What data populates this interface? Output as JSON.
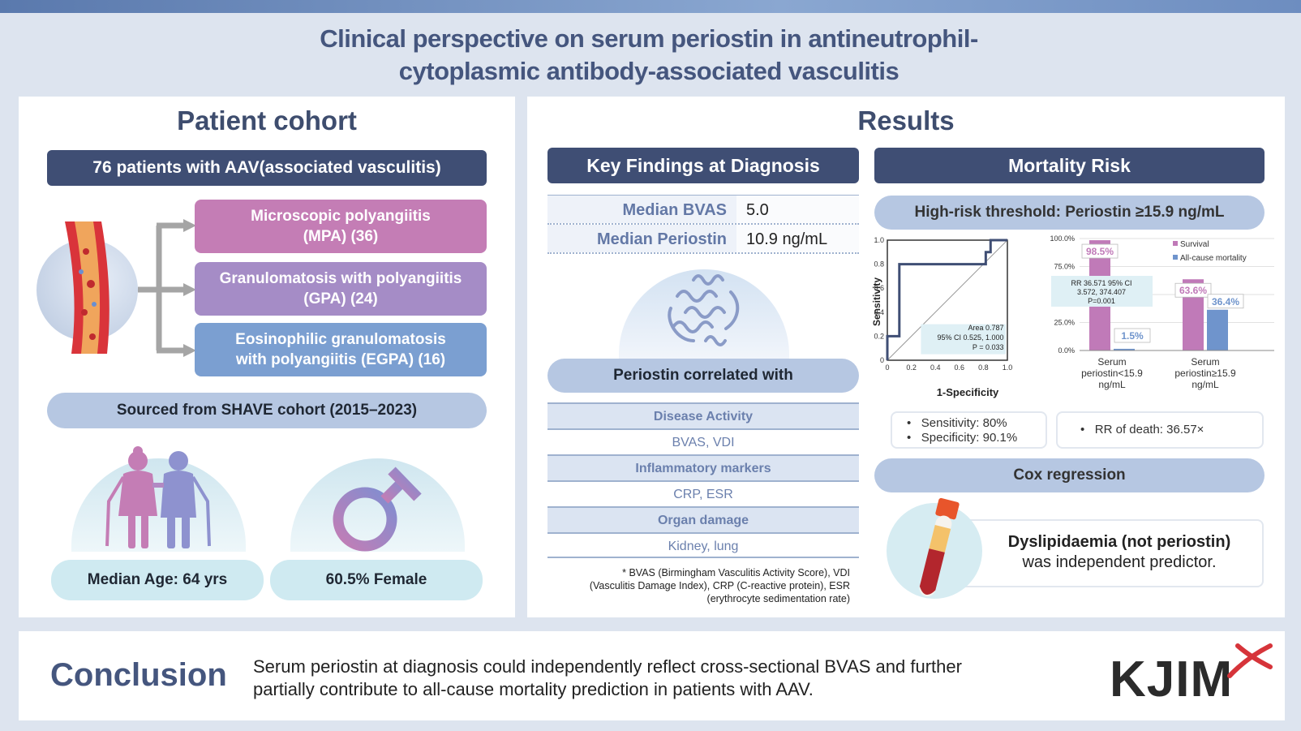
{
  "title_line1": "Clinical perspective on serum periostin in antineutrophil-",
  "title_line2": "cytoplasmic antibody-associated vasculitis",
  "cohort": {
    "heading": "Patient cohort",
    "banner": "76 patients with AAV(associated vasculitis)",
    "types": [
      {
        "line1": "Microscopic polyangiitis",
        "line2": "(MPA) (36)",
        "color": "#c47db5"
      },
      {
        "line1": "Granulomatosis with polyangiitis",
        "line2": "(GPA) (24)",
        "color": "#a58cc6"
      },
      {
        "line1": "Eosinophilic granulomatosis",
        "line2": "with polyangiitis (EGPA) (16)",
        "color": "#7b9fd1"
      }
    ],
    "source": "Sourced from SHAVE cohort (2015–2023)",
    "age": "Median Age: 64 yrs",
    "female": "60.5% Female"
  },
  "results": {
    "heading": "Results",
    "key_findings": {
      "title": "Key Findings at Diagnosis",
      "rows": [
        {
          "label": "Median BVAS",
          "value": "5.0"
        },
        {
          "label": "Median Periostin",
          "value": "10.9 ng/mL"
        }
      ],
      "correlated_title": "Periostin correlated with",
      "correlations": [
        {
          "category": "Disease Activity",
          "items": "BVAS, VDI"
        },
        {
          "category": "Inflammatory markers",
          "items": "CRP, ESR"
        },
        {
          "category": "Organ damage",
          "items": "Kidney, lung"
        }
      ],
      "footnote_1": "* BVAS (Birmingham Vasculitis Activity Score), VDI",
      "footnote_2": "(Vasculitis Damage Index), CRP (C-reactive protein), ESR",
      "footnote_3": "(erythrocyte sedimentation rate)"
    },
    "mortality": {
      "title": "Mortality Risk",
      "threshold": "High-risk threshold: Periostin ≥15.9 ng/mL",
      "sens": "Sensitivity: 80%",
      "spec": "Specificity: 90.1%",
      "rr": "RR of death: 36.57×",
      "cox_title": "Cox regression",
      "cox_line1": "Dyslipidaemia (not periostin)",
      "cox_line2": "was independent predictor."
    }
  },
  "chart_data": [
    {
      "type": "line",
      "xlabel": "1-Specificity",
      "ylabel": "Sensitivity",
      "xlim": [
        0,
        1
      ],
      "ylim": [
        0,
        1
      ],
      "xticks": [
        "0",
        "0.2",
        "0.4",
        "0.6",
        "0.8",
        "1.0"
      ],
      "yticks": [
        "0",
        "0.2",
        "0.4",
        "0.6",
        "0.8",
        "1.0"
      ],
      "roc": [
        [
          0,
          0
        ],
        [
          0,
          0.2
        ],
        [
          0.1,
          0.2
        ],
        [
          0.1,
          0.4
        ],
        [
          0.1,
          0.6
        ],
        [
          0.1,
          0.8
        ],
        [
          0.82,
          0.8
        ],
        [
          0.82,
          0.9
        ],
        [
          0.86,
          0.9
        ],
        [
          0.86,
          1.0
        ],
        [
          1,
          1
        ]
      ],
      "annotation": [
        "Area 0.787",
        "95% CI 0.525, 1.000",
        "P = 0.033"
      ]
    },
    {
      "type": "bar",
      "categories": [
        "Serum periostin<15.9 ng/mL",
        "Serum periostin≥15.9 ng/mL"
      ],
      "category_labels": [
        [
          "Serum",
          "periostin<15.9",
          "ng/mL"
        ],
        [
          "Serum",
          "periostin≥15.9",
          "ng/mL"
        ]
      ],
      "series": [
        {
          "name": "Survival",
          "values": [
            98.5,
            63.6
          ],
          "labels": [
            "98.5%",
            "63.6%"
          ],
          "color": "#c07ab8"
        },
        {
          "name": "All-cause mortality",
          "values": [
            1.5,
            36.4
          ],
          "labels": [
            "1.5%",
            "36.4%"
          ],
          "color": "#6f94cc"
        }
      ],
      "ylim": [
        0,
        100
      ],
      "yticks": [
        "0.0%",
        "25.0%",
        "50.0%",
        "75.0%",
        "100.0%"
      ],
      "annotation": [
        "RR 36.571 95% CI",
        "3.572, 374.407",
        "P=0.001"
      ],
      "legend": "top-right"
    }
  ],
  "conclusion": {
    "heading": "Conclusion",
    "line1": "Serum periostin at diagnosis could independently reflect cross-sectional BVAS and further",
    "line2": "partially contribute to all-cause mortality prediction in patients with AAV."
  },
  "logo": "KJIM"
}
